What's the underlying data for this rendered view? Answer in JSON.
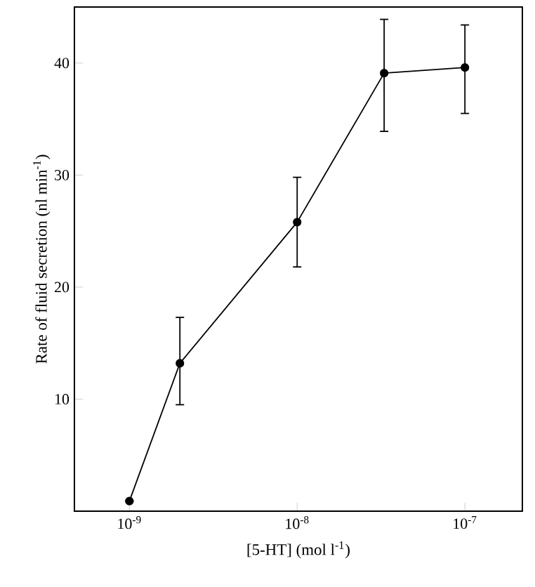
{
  "chart_data": {
    "type": "line",
    "xlabel": "[5-HT] (mol l$^{-1}$)",
    "ylabel": "Rate of fluid secretion (nl min$^{-1}$)",
    "x": [
      1e-09,
      2e-09,
      1e-08,
      3.3e-08,
      1e-07
    ],
    "log": "x",
    "xlim": [
      4.7e-10,
      2.2e-07
    ],
    "ylim": [
      0,
      45
    ],
    "xticks": [
      {
        "value": 1e-09,
        "label": "10$^{-9}$"
      },
      {
        "value": 1e-08,
        "label": "10$^{-8}$"
      },
      {
        "value": 1e-07,
        "label": "10$^{-7}$"
      }
    ],
    "yticks": [
      10,
      20,
      30,
      40
    ],
    "series": [
      {
        "color": "#000000",
        "values": [
          0.9,
          13.2,
          25.8,
          39.1,
          39.6
        ],
        "errors": [
          null,
          [
            9.5,
            17.3
          ],
          [
            21.8,
            29.8
          ],
          [
            33.9,
            43.9
          ],
          [
            35.5,
            43.4
          ]
        ]
      }
    ],
    "marker": "circle",
    "line_style": "solid"
  }
}
